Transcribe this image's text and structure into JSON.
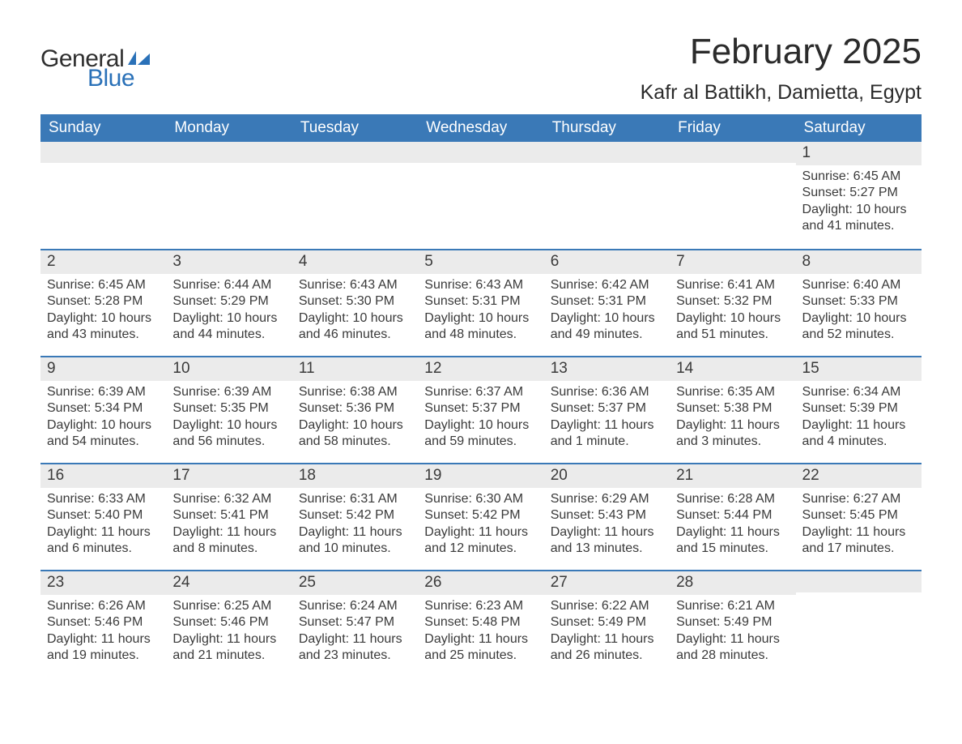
{
  "brand": {
    "general": "General",
    "blue": "Blue"
  },
  "title": "February 2025",
  "location": "Kafr al Battikh, Damietta, Egypt",
  "colors": {
    "header_bg": "#3a79b7",
    "header_text": "#ffffff",
    "week_border": "#3a79b7",
    "daynum_bg": "#ebebeb",
    "body_text": "#3a3a3a",
    "logo_blue": "#2a71b8",
    "logo_general": "#2f2f2f",
    "page_bg": "#ffffff"
  },
  "fonts": {
    "title_size_pt": 33,
    "location_size_pt": 19,
    "day_header_size_pt": 14,
    "day_num_size_pt": 14,
    "body_size_pt": 12
  },
  "layout": {
    "columns": 7,
    "first_day_index": 6
  },
  "day_names": [
    "Sunday",
    "Monday",
    "Tuesday",
    "Wednesday",
    "Thursday",
    "Friday",
    "Saturday"
  ],
  "days": [
    {
      "n": 1,
      "sunrise": "6:45 AM",
      "sunset": "5:27 PM",
      "daylight": "10 hours and 41 minutes."
    },
    {
      "n": 2,
      "sunrise": "6:45 AM",
      "sunset": "5:28 PM",
      "daylight": "10 hours and 43 minutes."
    },
    {
      "n": 3,
      "sunrise": "6:44 AM",
      "sunset": "5:29 PM",
      "daylight": "10 hours and 44 minutes."
    },
    {
      "n": 4,
      "sunrise": "6:43 AM",
      "sunset": "5:30 PM",
      "daylight": "10 hours and 46 minutes."
    },
    {
      "n": 5,
      "sunrise": "6:43 AM",
      "sunset": "5:31 PM",
      "daylight": "10 hours and 48 minutes."
    },
    {
      "n": 6,
      "sunrise": "6:42 AM",
      "sunset": "5:31 PM",
      "daylight": "10 hours and 49 minutes."
    },
    {
      "n": 7,
      "sunrise": "6:41 AM",
      "sunset": "5:32 PM",
      "daylight": "10 hours and 51 minutes."
    },
    {
      "n": 8,
      "sunrise": "6:40 AM",
      "sunset": "5:33 PM",
      "daylight": "10 hours and 52 minutes."
    },
    {
      "n": 9,
      "sunrise": "6:39 AM",
      "sunset": "5:34 PM",
      "daylight": "10 hours and 54 minutes."
    },
    {
      "n": 10,
      "sunrise": "6:39 AM",
      "sunset": "5:35 PM",
      "daylight": "10 hours and 56 minutes."
    },
    {
      "n": 11,
      "sunrise": "6:38 AM",
      "sunset": "5:36 PM",
      "daylight": "10 hours and 58 minutes."
    },
    {
      "n": 12,
      "sunrise": "6:37 AM",
      "sunset": "5:37 PM",
      "daylight": "10 hours and 59 minutes."
    },
    {
      "n": 13,
      "sunrise": "6:36 AM",
      "sunset": "5:37 PM",
      "daylight": "11 hours and 1 minute."
    },
    {
      "n": 14,
      "sunrise": "6:35 AM",
      "sunset": "5:38 PM",
      "daylight": "11 hours and 3 minutes."
    },
    {
      "n": 15,
      "sunrise": "6:34 AM",
      "sunset": "5:39 PM",
      "daylight": "11 hours and 4 minutes."
    },
    {
      "n": 16,
      "sunrise": "6:33 AM",
      "sunset": "5:40 PM",
      "daylight": "11 hours and 6 minutes."
    },
    {
      "n": 17,
      "sunrise": "6:32 AM",
      "sunset": "5:41 PM",
      "daylight": "11 hours and 8 minutes."
    },
    {
      "n": 18,
      "sunrise": "6:31 AM",
      "sunset": "5:42 PM",
      "daylight": "11 hours and 10 minutes."
    },
    {
      "n": 19,
      "sunrise": "6:30 AM",
      "sunset": "5:42 PM",
      "daylight": "11 hours and 12 minutes."
    },
    {
      "n": 20,
      "sunrise": "6:29 AM",
      "sunset": "5:43 PM",
      "daylight": "11 hours and 13 minutes."
    },
    {
      "n": 21,
      "sunrise": "6:28 AM",
      "sunset": "5:44 PM",
      "daylight": "11 hours and 15 minutes."
    },
    {
      "n": 22,
      "sunrise": "6:27 AM",
      "sunset": "5:45 PM",
      "daylight": "11 hours and 17 minutes."
    },
    {
      "n": 23,
      "sunrise": "6:26 AM",
      "sunset": "5:46 PM",
      "daylight": "11 hours and 19 minutes."
    },
    {
      "n": 24,
      "sunrise": "6:25 AM",
      "sunset": "5:46 PM",
      "daylight": "11 hours and 21 minutes."
    },
    {
      "n": 25,
      "sunrise": "6:24 AM",
      "sunset": "5:47 PM",
      "daylight": "11 hours and 23 minutes."
    },
    {
      "n": 26,
      "sunrise": "6:23 AM",
      "sunset": "5:48 PM",
      "daylight": "11 hours and 25 minutes."
    },
    {
      "n": 27,
      "sunrise": "6:22 AM",
      "sunset": "5:49 PM",
      "daylight": "11 hours and 26 minutes."
    },
    {
      "n": 28,
      "sunrise": "6:21 AM",
      "sunset": "5:49 PM",
      "daylight": "11 hours and 28 minutes."
    }
  ],
  "labels": {
    "sunrise": "Sunrise: ",
    "sunset": "Sunset: ",
    "daylight": "Daylight: "
  }
}
